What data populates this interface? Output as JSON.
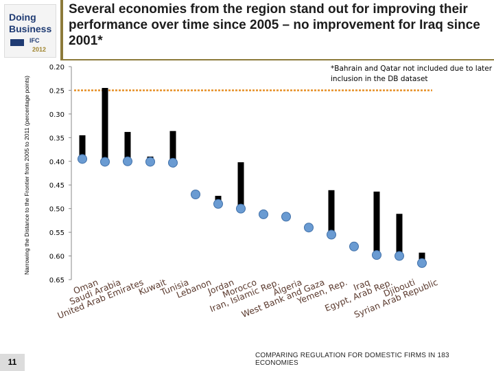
{
  "logo": {
    "line1": "Doing",
    "line2": "Business",
    "org": "IFC",
    "year": "2012",
    "wb_label": "WB"
  },
  "title": "Several economies from the region stand out for improving their performance over time since 2005 – no improvement for Iraq since 2001*",
  "note": "*Bahrain and Qatar not included due to later inclusion in the DB dataset",
  "footer": "COMPARING REGULATION FOR DOMESTIC FIRMS IN 183 ECONOMIES",
  "page_number": "11",
  "colors": {
    "bar": "#000000",
    "dot": "#6a9bd2",
    "dot_stroke": "#3f6fa8",
    "dashed_line": "#e58e22"
  },
  "chart_data": {
    "type": "scatter",
    "title": "",
    "ylabel": "Narrowing the Distance to the Frontier from 2005 to 2011 (percentage points)",
    "yticks": [
      "0.20",
      "0.25",
      "0.30",
      "0.35",
      "0.40",
      "0.45",
      "0.50",
      "0.55",
      "0.60",
      "0.65"
    ],
    "ylim": [
      0.2,
      0.65
    ],
    "y_inverted": true,
    "reference_line": 0.25,
    "categories": [
      "Oman",
      "Saudi Arabia",
      "United Arab Emirates",
      "Kuwait",
      "Tunisia",
      "Lebanon",
      "Jordan",
      "Morocco",
      "Iran, Islamic Rep.",
      "Algeria",
      "West Bank and Gaza",
      "Yemen, Rep.",
      "Iraq",
      "Egypt, Arab Rep.",
      "Djibouti",
      "Syrian Arab Republic"
    ],
    "series": [
      {
        "name": "bar_top",
        "values": [
          0.345,
          0.245,
          0.338,
          0.39,
          0.336,
          0.476,
          0.473,
          0.402,
          0.52,
          0.535,
          0.557,
          0.461,
          0.58,
          0.464,
          0.511,
          0.593
        ]
      },
      {
        "name": "dot",
        "values": [
          0.395,
          0.401,
          0.4,
          0.401,
          0.403,
          0.47,
          0.49,
          0.5,
          0.512,
          0.517,
          0.54,
          0.555,
          0.58,
          0.598,
          0.6,
          0.615
        ]
      }
    ]
  }
}
